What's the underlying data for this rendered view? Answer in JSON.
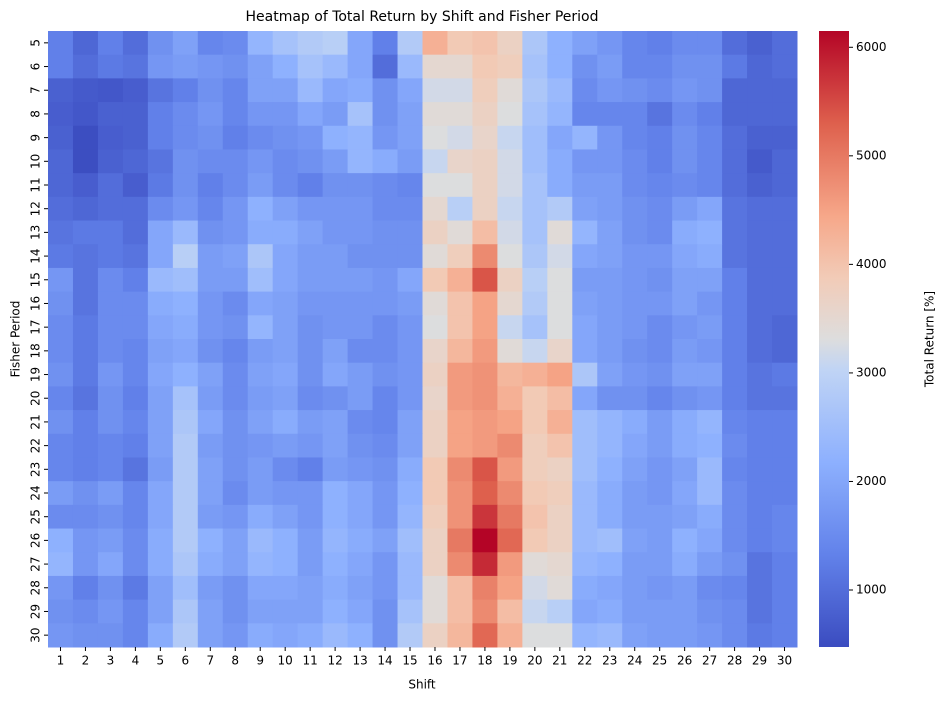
{
  "chart_data": {
    "type": "heatmap",
    "title": "Heatmap of Total Return by Shift and Fisher Period",
    "x_label": "Shift",
    "y_label": "Fisher Period",
    "colorbar_label": "Total Return [%]",
    "colormap": "coolwarm",
    "x_categories": [
      "1",
      "2",
      "3",
      "4",
      "5",
      "6",
      "7",
      "8",
      "9",
      "10",
      "11",
      "12",
      "13",
      "14",
      "15",
      "16",
      "17",
      "18",
      "19",
      "20",
      "21",
      "22",
      "23",
      "24",
      "25",
      "26",
      "27",
      "28",
      "29",
      "30"
    ],
    "y_categories": [
      "5",
      "6",
      "7",
      "8",
      "9",
      "10",
      "11",
      "12",
      "13",
      "14",
      "15",
      "16",
      "17",
      "18",
      "19",
      "20",
      "21",
      "22",
      "23",
      "24",
      "25",
      "26",
      "27",
      "28",
      "29",
      "30"
    ],
    "zlim": [
      475,
      6150
    ],
    "zticks": [
      1000,
      2000,
      3000,
      4000,
      5000,
      6000
    ],
    "values": [
      [
        1300,
        900,
        1300,
        1000,
        1600,
        1900,
        1400,
        1500,
        2300,
        2600,
        2800,
        2900,
        2000,
        1300,
        2800,
        4300,
        3900,
        4000,
        3700,
        2700,
        2200,
        1900,
        1700,
        1400,
        1300,
        1500,
        1500,
        1000,
        800,
        1000
      ],
      [
        1300,
        1000,
        1200,
        1100,
        1700,
        1800,
        1700,
        1600,
        1900,
        2200,
        2600,
        2400,
        2000,
        1000,
        2400,
        3500,
        3500,
        3900,
        3800,
        2600,
        2200,
        1600,
        1800,
        1400,
        1400,
        1600,
        1600,
        1200,
        900,
        1000
      ],
      [
        800,
        700,
        650,
        750,
        1100,
        1300,
        1600,
        1400,
        1900,
        1900,
        2400,
        2000,
        2100,
        1600,
        2000,
        3200,
        3200,
        3800,
        3400,
        2700,
        2400,
        1500,
        1700,
        1600,
        1500,
        1700,
        1600,
        900,
        900,
        900
      ],
      [
        750,
        650,
        800,
        800,
        1300,
        1500,
        1700,
        1400,
        1700,
        1700,
        2000,
        1800,
        2600,
        1600,
        1900,
        3400,
        3400,
        3700,
        3300,
        2600,
        2300,
        1400,
        1400,
        1400,
        1100,
        1500,
        1300,
        900,
        900,
        900
      ],
      [
        800,
        500,
        750,
        800,
        1300,
        1500,
        1600,
        1300,
        1500,
        1600,
        1700,
        2200,
        2300,
        1700,
        1900,
        3300,
        3200,
        3600,
        3100,
        2500,
        2000,
        2300,
        1700,
        1400,
        1300,
        1600,
        1400,
        1000,
        800,
        800
      ],
      [
        900,
        500,
        800,
        900,
        1100,
        1600,
        1500,
        1500,
        1700,
        1500,
        1600,
        1800,
        2300,
        2100,
        1800,
        3100,
        3600,
        3700,
        3200,
        2500,
        2100,
        1700,
        1700,
        1500,
        1300,
        1600,
        1400,
        1000,
        700,
        900
      ],
      [
        900,
        750,
        1000,
        750,
        1200,
        1600,
        1300,
        1500,
        1800,
        1500,
        1300,
        1600,
        1600,
        1500,
        1400,
        3300,
        3300,
        3700,
        3200,
        2600,
        2100,
        1800,
        1800,
        1500,
        1400,
        1500,
        1400,
        1000,
        800,
        900
      ],
      [
        1000,
        900,
        1000,
        1000,
        1500,
        1700,
        1400,
        1700,
        2200,
        1900,
        1700,
        1700,
        1700,
        1500,
        1500,
        3500,
        2900,
        3700,
        3100,
        2600,
        2800,
        1900,
        1800,
        1600,
        1500,
        1800,
        2000,
        1100,
        1000,
        1000
      ],
      [
        1100,
        1200,
        1200,
        1000,
        2000,
        2400,
        1600,
        1700,
        2100,
        2100,
        1900,
        1700,
        1700,
        1600,
        1600,
        3700,
        3400,
        4100,
        3200,
        2600,
        3400,
        2300,
        1900,
        1600,
        1500,
        2100,
        2200,
        1100,
        1000,
        1000
      ],
      [
        1200,
        1100,
        1200,
        1100,
        2000,
        2900,
        1800,
        1900,
        2700,
        2000,
        1800,
        1800,
        1600,
        1600,
        1600,
        3400,
        3800,
        4800,
        3300,
        2700,
        3200,
        2000,
        1900,
        1700,
        1700,
        2000,
        2100,
        1100,
        1000,
        1000
      ],
      [
        1700,
        1100,
        1500,
        1300,
        2400,
        2500,
        1800,
        1800,
        2500,
        2000,
        1800,
        1800,
        1800,
        1700,
        2000,
        3900,
        4300,
        5400,
        3700,
        2900,
        3300,
        1800,
        1800,
        1700,
        1600,
        1900,
        1900,
        1300,
        1000,
        1000
      ],
      [
        1600,
        1100,
        1500,
        1500,
        2100,
        2200,
        1700,
        1500,
        2000,
        1900,
        1700,
        1700,
        1700,
        1700,
        1800,
        3400,
        4000,
        4500,
        3500,
        2800,
        3300,
        1900,
        1800,
        1700,
        1700,
        1900,
        1700,
        1300,
        1000,
        1000
      ],
      [
        1500,
        1200,
        1500,
        1500,
        2000,
        2100,
        1700,
        1600,
        2300,
        1900,
        1600,
        1700,
        1700,
        1500,
        1700,
        3300,
        4000,
        4500,
        3100,
        2600,
        3300,
        2000,
        1800,
        1700,
        1500,
        1700,
        1800,
        1300,
        1000,
        900
      ],
      [
        1500,
        1200,
        1500,
        1400,
        1900,
        2000,
        1600,
        1400,
        1800,
        1900,
        1600,
        1900,
        1500,
        1500,
        1700,
        3600,
        4200,
        4600,
        3400,
        3100,
        3600,
        2000,
        1800,
        1600,
        1500,
        1800,
        1700,
        1300,
        1000,
        900
      ],
      [
        1600,
        1200,
        1700,
        1400,
        2000,
        2200,
        1900,
        1500,
        1900,
        2000,
        1600,
        2000,
        1800,
        1600,
        1700,
        3700,
        4600,
        4700,
        4200,
        4300,
        4500,
        2700,
        1900,
        1700,
        1600,
        1900,
        1900,
        1300,
        1100,
        1200
      ],
      [
        1400,
        1100,
        1600,
        1300,
        1900,
        2600,
        1800,
        1500,
        1800,
        1900,
        1500,
        1600,
        1800,
        1400,
        1700,
        3600,
        4600,
        4700,
        4300,
        3900,
        4100,
        2000,
        1600,
        1600,
        1400,
        1600,
        1700,
        1300,
        1100,
        1100
      ],
      [
        1600,
        1300,
        1600,
        1400,
        1900,
        2700,
        2000,
        1600,
        1900,
        2100,
        1800,
        1900,
        1500,
        1400,
        1900,
        3700,
        4500,
        4600,
        4500,
        3900,
        4300,
        2500,
        2300,
        2100,
        1800,
        2100,
        2300,
        1400,
        1300,
        1300
      ],
      [
        1400,
        1300,
        1400,
        1300,
        1900,
        2800,
        1800,
        1600,
        1700,
        1800,
        1700,
        1900,
        1600,
        1500,
        1900,
        3700,
        4500,
        4600,
        4800,
        3800,
        4000,
        2500,
        2300,
        2000,
        1800,
        2100,
        2200,
        1500,
        1300,
        1300
      ],
      [
        1400,
        1300,
        1400,
        1100,
        1800,
        2800,
        1900,
        1600,
        1800,
        1500,
        1300,
        1800,
        1700,
        1600,
        2100,
        3900,
        4800,
        5400,
        4600,
        3800,
        3700,
        2500,
        2200,
        1900,
        1700,
        1900,
        2400,
        1400,
        1300,
        1300
      ],
      [
        1800,
        1600,
        1800,
        1400,
        2000,
        2800,
        1900,
        1500,
        1800,
        1700,
        1700,
        2200,
        2000,
        1700,
        2200,
        3900,
        4700,
        5300,
        4800,
        3900,
        3800,
        2400,
        2100,
        1800,
        1700,
        2000,
        2400,
        1500,
        1300,
        1300
      ],
      [
        1500,
        1500,
        1600,
        1400,
        2000,
        2800,
        1800,
        1700,
        2100,
        1900,
        1700,
        2200,
        2000,
        1700,
        2300,
        3800,
        4700,
        5700,
        5000,
        4000,
        3700,
        2400,
        2100,
        1800,
        1800,
        1900,
        2100,
        1500,
        1300,
        1400
      ],
      [
        2200,
        1700,
        1800,
        1500,
        2100,
        2800,
        2200,
        1900,
        2400,
        2200,
        1800,
        2300,
        2100,
        1900,
        2500,
        3700,
        5000,
        6150,
        5200,
        3900,
        3700,
        2400,
        2500,
        1900,
        1800,
        2200,
        2000,
        1500,
        1300,
        1400
      ],
      [
        2300,
        1700,
        2000,
        1500,
        2100,
        2700,
        2100,
        1900,
        2300,
        2200,
        1800,
        2200,
        2000,
        1700,
        2400,
        3700,
        4800,
        5800,
        4600,
        3400,
        3500,
        2300,
        2200,
        1800,
        1800,
        2100,
        1800,
        1600,
        1100,
        1300
      ],
      [
        1700,
        1300,
        1600,
        1200,
        1900,
        2500,
        1800,
        1600,
        2000,
        2000,
        1900,
        2100,
        1900,
        1700,
        2400,
        3400,
        4100,
        4900,
        4500,
        3200,
        3400,
        2100,
        2000,
        1800,
        1700,
        1800,
        1500,
        1400,
        1100,
        1300
      ],
      [
        1600,
        1500,
        1700,
        1400,
        1900,
        2700,
        1900,
        1600,
        1900,
        1900,
        1900,
        2200,
        2000,
        1600,
        2600,
        3400,
        4100,
        4800,
        4100,
        3100,
        2900,
        2000,
        2100,
        1800,
        1800,
        1800,
        1600,
        1500,
        1100,
        1300
      ],
      [
        1700,
        1600,
        1600,
        1400,
        2100,
        2800,
        1900,
        1700,
        2100,
        2000,
        2100,
        2400,
        2200,
        1600,
        2800,
        3700,
        4200,
        5200,
        4300,
        3300,
        3300,
        2300,
        2400,
        1900,
        1800,
        1800,
        1700,
        1500,
        1200,
        1300
      ]
    ]
  }
}
